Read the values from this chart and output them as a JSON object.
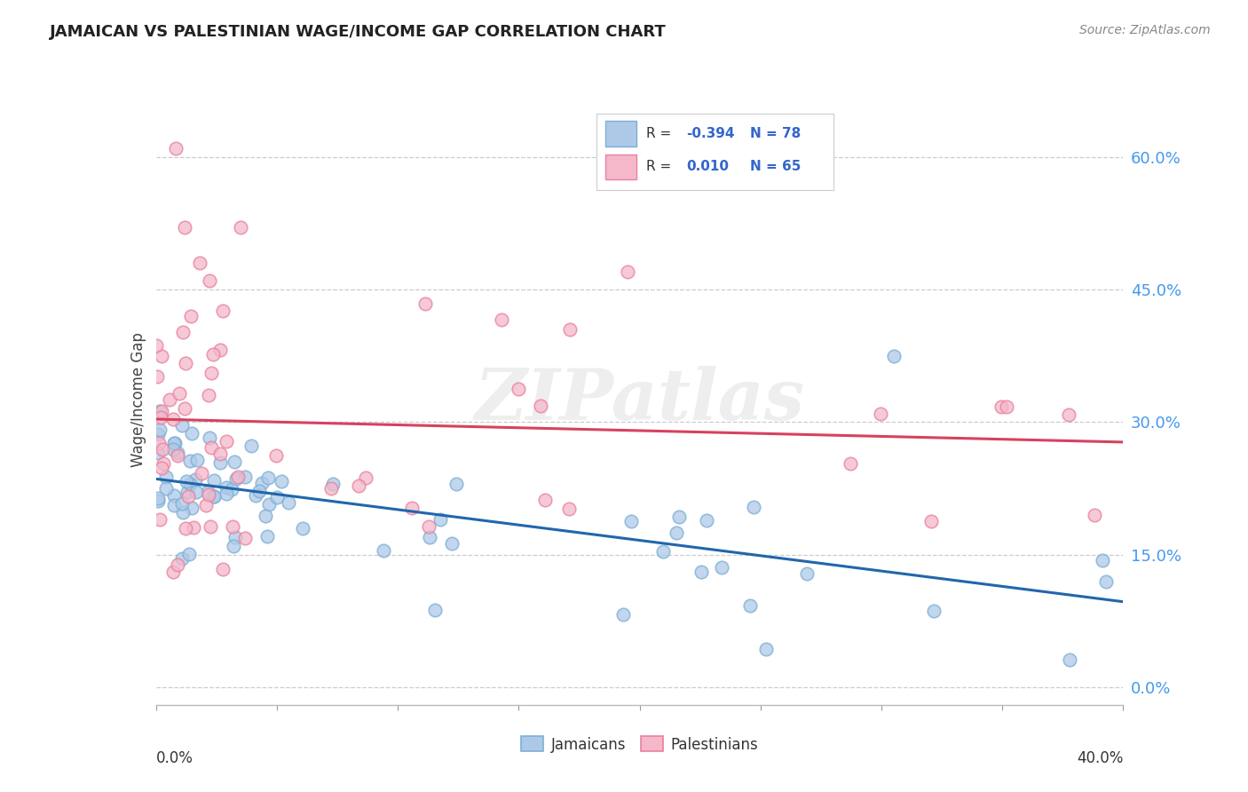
{
  "title": "JAMAICAN VS PALESTINIAN WAGE/INCOME GAP CORRELATION CHART",
  "source": "Source: ZipAtlas.com",
  "ylabel": "Wage/Income Gap",
  "ytick_vals": [
    0.0,
    0.15,
    0.3,
    0.45,
    0.6
  ],
  "ytick_labels": [
    "0.0%",
    "15.0%",
    "30.0%",
    "45.0%",
    "60.0%"
  ],
  "xrange": [
    0.0,
    0.4
  ],
  "yrange": [
    -0.02,
    0.67
  ],
  "legend_R_jamaican": "-0.394",
  "legend_N_jamaican": "78",
  "legend_R_palestinian": "0.010",
  "legend_N_palestinian": "65",
  "watermark": "ZIPatlas",
  "blue_fill": "#aec9e8",
  "blue_edge": "#7bafd4",
  "pink_fill": "#f4b8ca",
  "pink_edge": "#e8819d",
  "line_blue": "#2166ac",
  "line_pink": "#d6425e",
  "tick_color": "#4499ee",
  "grid_color": "#cccccc"
}
